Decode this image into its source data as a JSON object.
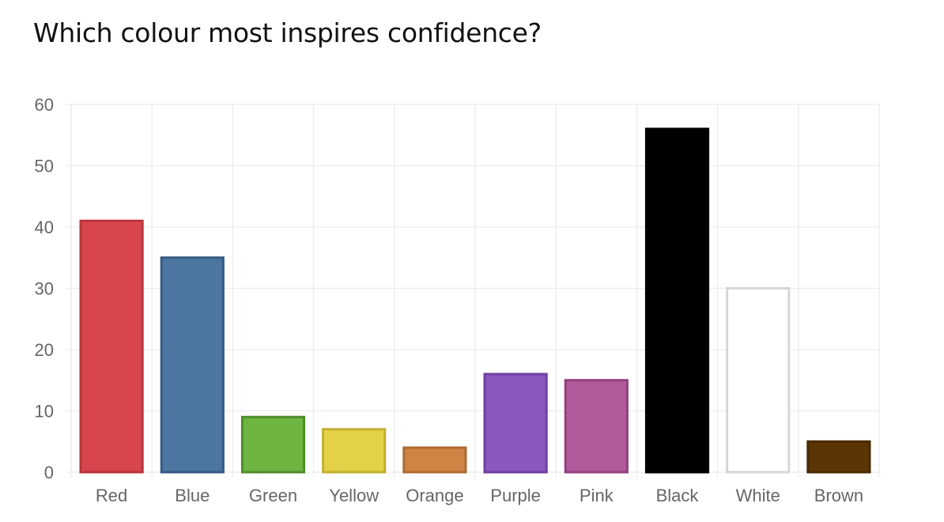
{
  "chart_data": {
    "type": "bar",
    "title": "Which colour most inspires confidence?",
    "xlabel": "",
    "ylabel": "",
    "ylim": [
      0,
      60
    ],
    "yticks": [
      0,
      10,
      20,
      30,
      40,
      50,
      60
    ],
    "grid": true,
    "legend": "none",
    "categories": [
      "Red",
      "Blue",
      "Green",
      "Yellow",
      "Orange",
      "Purple",
      "Pink",
      "Black",
      "White",
      "Brown"
    ],
    "values": [
      41,
      35,
      9,
      7,
      4,
      16,
      15,
      56,
      30,
      5
    ],
    "colors": {
      "fill": [
        "#d9454d",
        "#4a76a0",
        "#6db540",
        "#e3d147",
        "#cf8445",
        "#8a58be",
        "#b25b9c",
        "#000000",
        "#ffffff",
        "#5b3505"
      ],
      "stroke": [
        "#b8343c",
        "#365a82",
        "#4f8c2b",
        "#c4ae30",
        "#ad6a32",
        "#6e3ea0",
        "#923f7e",
        "#000000",
        "#d6d6d6",
        "#4a2a03"
      ]
    }
  }
}
